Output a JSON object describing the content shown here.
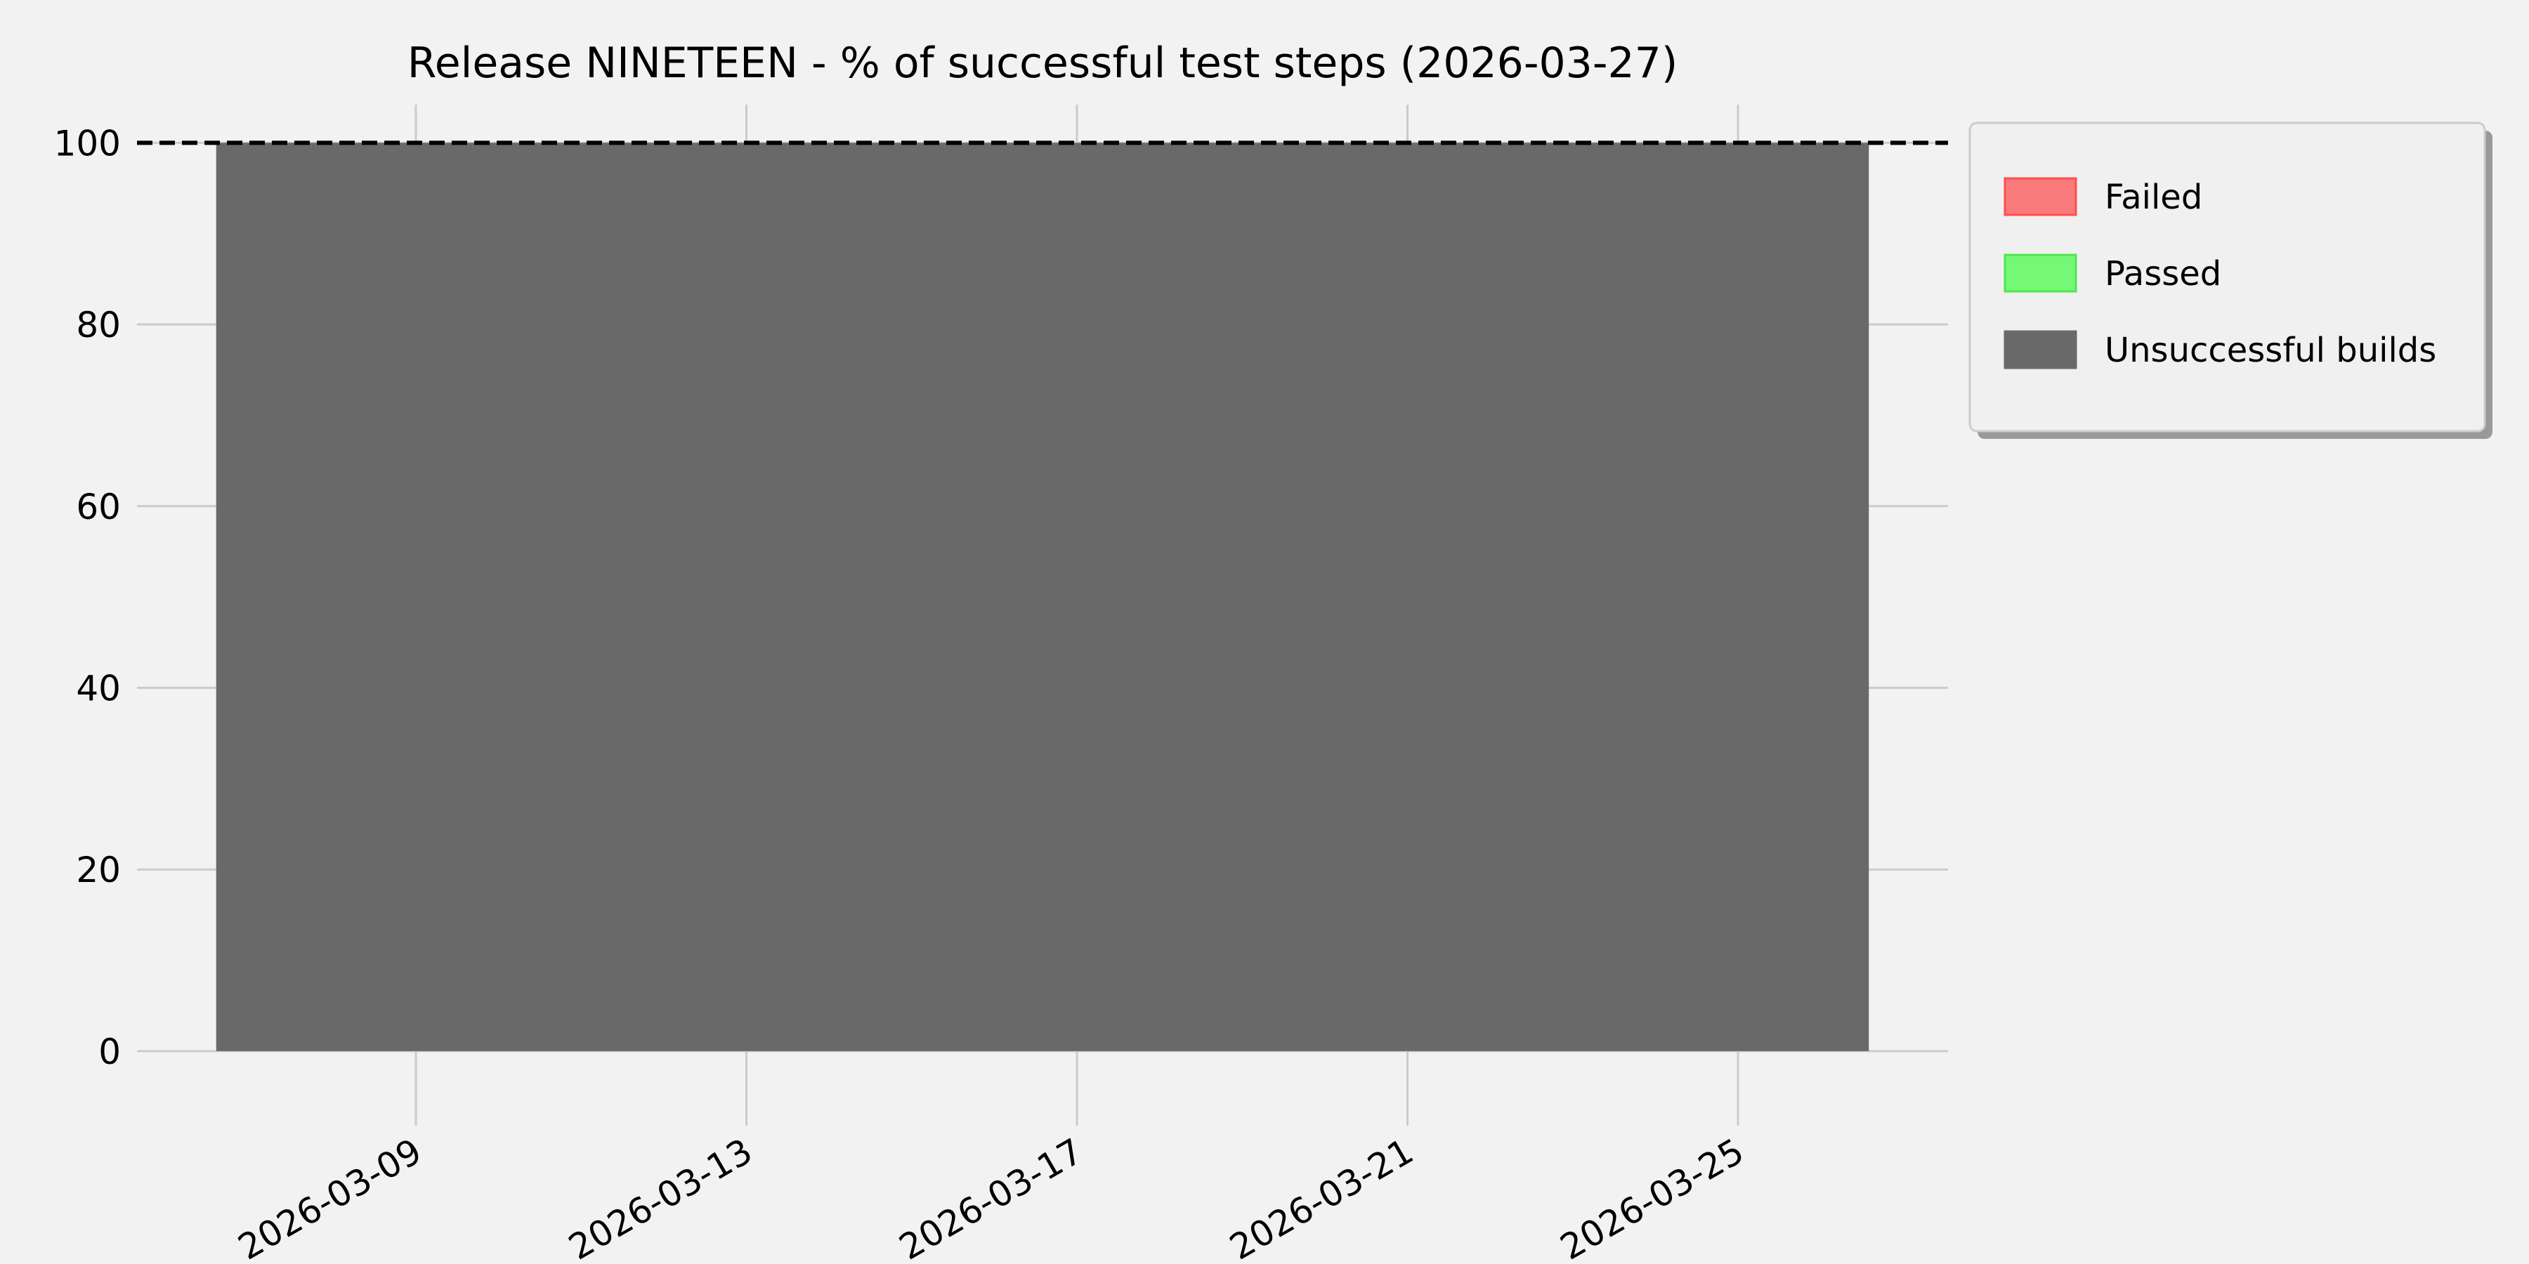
{
  "chart_data": {
    "type": "area",
    "title": "Release NINETEEN - % of successful test steps (2026-03-27)",
    "xlabel": "",
    "ylabel": "",
    "x": [
      "2026-03-06T14:00",
      "2026-03-07T14:00",
      "2026-03-08T14:00",
      "2026-03-09T14:00",
      "2026-03-10T14:00",
      "2026-03-11T14:00",
      "2026-03-12T14:00",
      "2026-03-13T14:00",
      "2026-03-14T14:00",
      "2026-03-15T14:00",
      "2026-03-16T14:00",
      "2026-03-17T14:00",
      "2026-03-18T14:00",
      "2026-03-19T14:00",
      "2026-03-20T14:00",
      "2026-03-21T14:00",
      "2026-03-22T14:00",
      "2026-03-23T14:00",
      "2026-03-24T14:00",
      "2026-03-25T14:00",
      "2026-03-26T14:00"
    ],
    "series": [
      {
        "name": "Failed",
        "color": "#f87a7a",
        "edge": "#ff4d4d",
        "values": [
          0,
          0,
          0,
          0,
          0,
          0,
          0,
          0,
          0,
          0,
          0,
          0,
          0,
          0,
          0,
          0,
          0,
          0,
          0,
          0,
          0
        ]
      },
      {
        "name": "Passed",
        "color": "#75f875",
        "edge": "#4de84d",
        "values": [
          0,
          0,
          0,
          0,
          0,
          0,
          0,
          0,
          0,
          0,
          0,
          0,
          0,
          0,
          0,
          0,
          0,
          0,
          0,
          0,
          0
        ]
      },
      {
        "name": "Unsuccessful builds",
        "color": "#696969",
        "edge": "#696969",
        "values": [
          100,
          100,
          100,
          100,
          100,
          100,
          100,
          100,
          100,
          100,
          100,
          100,
          100,
          100,
          100,
          100,
          100,
          100,
          100,
          100,
          100
        ]
      }
    ],
    "stacked": true,
    "reference_line": {
      "y": 100,
      "style": "dashed",
      "color": "#000000"
    },
    "xticks": [
      "2026-03-09",
      "2026-03-13",
      "2026-03-17",
      "2026-03-21",
      "2026-03-25"
    ],
    "yticks": [
      0,
      20,
      40,
      60,
      80,
      100
    ],
    "xlim": [
      "2026-03-05T15:00",
      "2026-03-27T13:00"
    ],
    "ylim": [
      -8.2,
      104.2
    ],
    "grid": true,
    "legend_placement": "outside-top-right",
    "background": "#f2f2f2",
    "grid_color": "#cbcbcb"
  }
}
